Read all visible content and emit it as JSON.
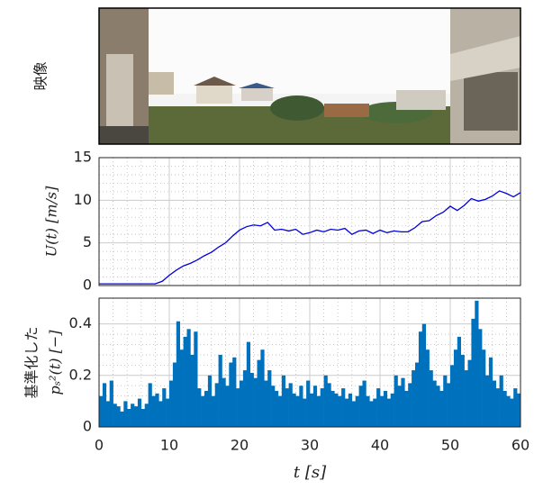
{
  "chart_data": [
    {
      "type": "image",
      "ylabel": "映像"
    },
    {
      "type": "line",
      "ylabel": "U(t) [m/s]",
      "show_xticklabels": false,
      "x": [
        0,
        1,
        2,
        3,
        4,
        5,
        6,
        7,
        8,
        9,
        10,
        11,
        12,
        13,
        14,
        15,
        16,
        17,
        18,
        19,
        20,
        21,
        22,
        23,
        24,
        25,
        26,
        27,
        28,
        29,
        30,
        31,
        32,
        33,
        34,
        35,
        36,
        37,
        38,
        39,
        40,
        41,
        42,
        43,
        44,
        45,
        46,
        47,
        48,
        49,
        50,
        51,
        52,
        53,
        54,
        55,
        56,
        57,
        58,
        59,
        60
      ],
      "series": [
        {
          "color": "#0000dd",
          "values": [
            0.2,
            0.2,
            0.2,
            0.2,
            0.2,
            0.2,
            0.2,
            0.2,
            0.2,
            0.5,
            1.2,
            1.8,
            2.3,
            2.6,
            3.0,
            3.5,
            3.9,
            4.5,
            5.0,
            5.8,
            6.5,
            6.9,
            7.1,
            7.0,
            7.4,
            6.5,
            6.6,
            6.4,
            6.6,
            6.0,
            6.2,
            6.5,
            6.3,
            6.6,
            6.5,
            6.7,
            6.0,
            6.4,
            6.5,
            6.1,
            6.5,
            6.2,
            6.4,
            6.3,
            6.3,
            6.8,
            7.5,
            7.6,
            8.2,
            8.6,
            9.3,
            8.8,
            9.4,
            10.2,
            9.9,
            10.1,
            10.5,
            11.1,
            10.8,
            10.4,
            10.9
          ]
        }
      ],
      "xlim": [
        0,
        60
      ],
      "xticks": [
        0,
        10,
        20,
        30,
        40,
        50,
        60
      ],
      "ylim": [
        0,
        15
      ],
      "yticks": [
        0,
        5,
        10,
        15
      ],
      "grid": true,
      "minor_grid": true
    },
    {
      "type": "bar",
      "ylabel": [
        "基準化した",
        "pₛ²(t) [−]"
      ],
      "xlabel": "t [s]",
      "show_xticklabels": true,
      "color": "#0072bd",
      "x": [
        0,
        0.5,
        1,
        1.5,
        2,
        2.5,
        3,
        3.5,
        4,
        4.5,
        5,
        5.5,
        6,
        6.5,
        7,
        7.5,
        8,
        8.5,
        9,
        9.5,
        10,
        10.5,
        11,
        11.5,
        12,
        12.5,
        13,
        13.5,
        14,
        14.5,
        15,
        15.5,
        16,
        16.5,
        17,
        17.5,
        18,
        18.5,
        19,
        19.5,
        20,
        20.5,
        21,
        21.5,
        22,
        22.5,
        23,
        23.5,
        24,
        24.5,
        25,
        25.5,
        26,
        26.5,
        27,
        27.5,
        28,
        28.5,
        29,
        29.5,
        30,
        30.5,
        31,
        31.5,
        32,
        32.5,
        33,
        33.5,
        34,
        34.5,
        35,
        35.5,
        36,
        36.5,
        37,
        37.5,
        38,
        38.5,
        39,
        39.5,
        40,
        40.5,
        41,
        41.5,
        42,
        42.5,
        43,
        43.5,
        44,
        44.5,
        45,
        45.5,
        46,
        46.5,
        47,
        47.5,
        48,
        48.5,
        49,
        49.5,
        50,
        50.5,
        51,
        51.5,
        52,
        52.5,
        53,
        53.5,
        54,
        54.5,
        55,
        55.5,
        56,
        56.5,
        57,
        57.5,
        58,
        58.5,
        59,
        59.5
      ],
      "values": [
        0.12,
        0.17,
        0.1,
        0.18,
        0.09,
        0.08,
        0.06,
        0.1,
        0.07,
        0.09,
        0.08,
        0.11,
        0.07,
        0.09,
        0.17,
        0.12,
        0.13,
        0.1,
        0.15,
        0.11,
        0.18,
        0.25,
        0.41,
        0.3,
        0.35,
        0.38,
        0.28,
        0.37,
        0.15,
        0.12,
        0.14,
        0.2,
        0.12,
        0.17,
        0.28,
        0.19,
        0.16,
        0.25,
        0.27,
        0.15,
        0.18,
        0.22,
        0.33,
        0.21,
        0.19,
        0.26,
        0.3,
        0.18,
        0.22,
        0.16,
        0.14,
        0.12,
        0.2,
        0.15,
        0.17,
        0.13,
        0.12,
        0.16,
        0.11,
        0.18,
        0.13,
        0.16,
        0.12,
        0.15,
        0.2,
        0.17,
        0.14,
        0.13,
        0.12,
        0.15,
        0.11,
        0.13,
        0.1,
        0.12,
        0.16,
        0.18,
        0.12,
        0.1,
        0.11,
        0.15,
        0.12,
        0.14,
        0.11,
        0.13,
        0.2,
        0.16,
        0.19,
        0.14,
        0.17,
        0.22,
        0.25,
        0.37,
        0.4,
        0.3,
        0.22,
        0.18,
        0.16,
        0.14,
        0.2,
        0.17,
        0.24,
        0.3,
        0.35,
        0.28,
        0.22,
        0.26,
        0.42,
        0.49,
        0.38,
        0.3,
        0.2,
        0.27,
        0.18,
        0.15,
        0.2,
        0.14,
        0.12,
        0.11,
        0.15,
        0.13
      ],
      "xlim": [
        0,
        60
      ],
      "xticks": [
        0,
        10,
        20,
        30,
        40,
        50,
        60
      ],
      "ylim": [
        0,
        0.5
      ],
      "yticks": [
        0,
        0.2,
        0.4
      ],
      "grid": true,
      "minor_grid": true
    }
  ]
}
